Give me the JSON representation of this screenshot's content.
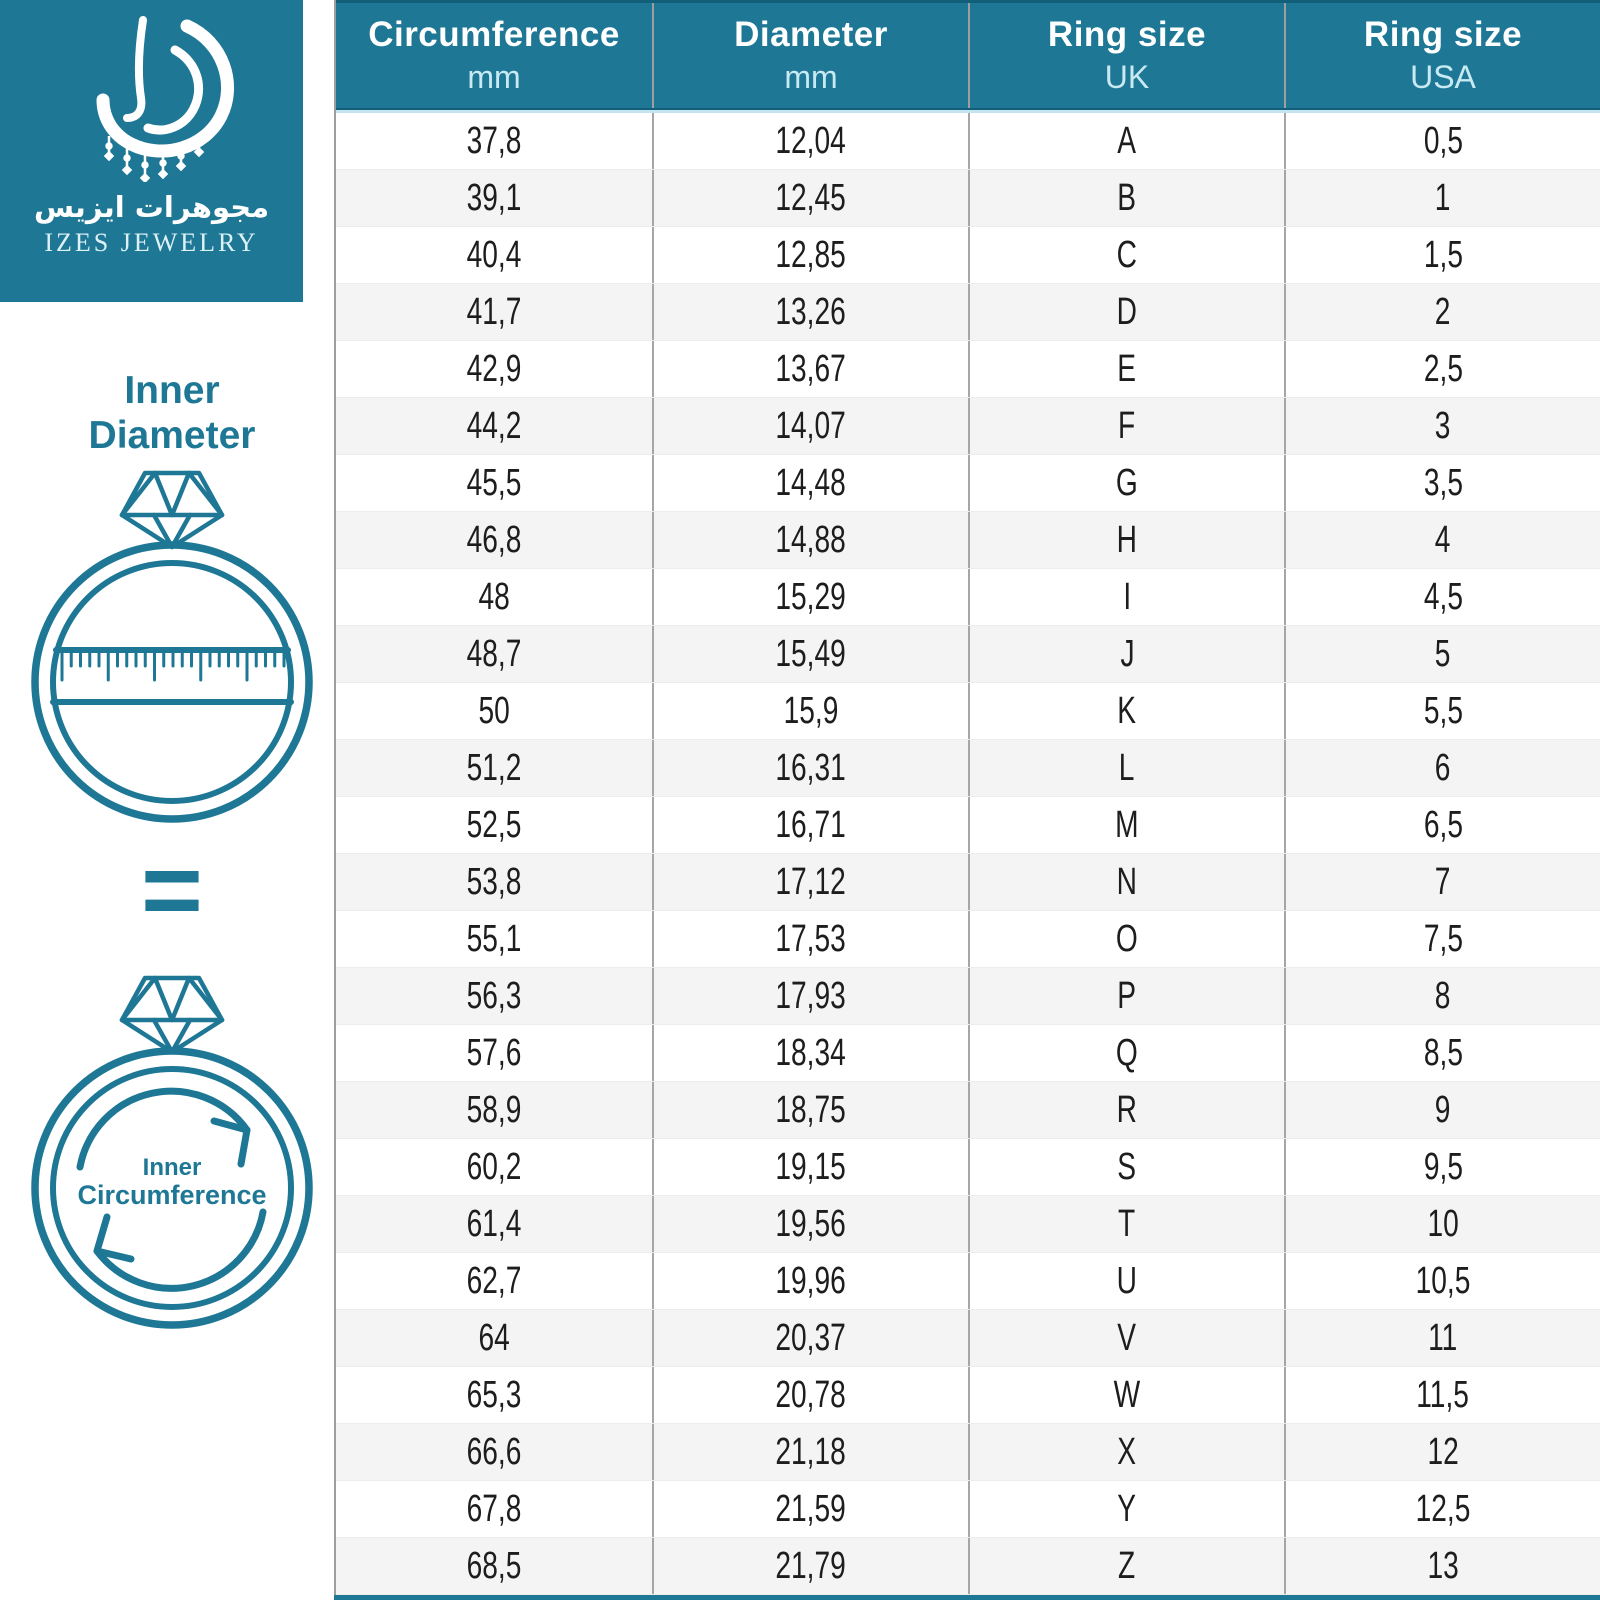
{
  "brand": {
    "arabic_name": "مجوهرات ايزيس",
    "latin_name": "IZES JEWELRY"
  },
  "left_panel": {
    "inner_diameter_label": {
      "line1": "Inner",
      "line2": "Diameter"
    },
    "equals_sign": "=",
    "inner_circumference_label": {
      "line1": "Inner",
      "line2": "Circumference"
    }
  },
  "colors": {
    "teal": "#1d7795",
    "row_stripe": "#f4f4f4",
    "grid_line": "#a6a6a6",
    "header_text": "#ffffff",
    "header_unit_text": "#c9e9f3",
    "cell_text": "#1d1d1d"
  },
  "chart_data": {
    "type": "table",
    "columns": [
      {
        "label": "Circumference",
        "unit": "mm"
      },
      {
        "label": "Diameter",
        "unit": "mm"
      },
      {
        "label": "Ring size",
        "unit": "UK"
      },
      {
        "label": "Ring size",
        "unit": "USA"
      }
    ],
    "rows": [
      [
        "37,8",
        "12,04",
        "A",
        "0,5"
      ],
      [
        "39,1",
        "12,45",
        "B",
        "1"
      ],
      [
        "40,4",
        "12,85",
        "C",
        "1,5"
      ],
      [
        "41,7",
        "13,26",
        "D",
        "2"
      ],
      [
        "42,9",
        "13,67",
        "E",
        "2,5"
      ],
      [
        "44,2",
        "14,07",
        "F",
        "3"
      ],
      [
        "45,5",
        "14,48",
        "G",
        "3,5"
      ],
      [
        "46,8",
        "14,88",
        "H",
        "4"
      ],
      [
        "48",
        "15,29",
        "I",
        "4,5"
      ],
      [
        "48,7",
        "15,49",
        "J",
        "5"
      ],
      [
        "50",
        "15,9",
        "K",
        "5,5"
      ],
      [
        "51,2",
        "16,31",
        "L",
        "6"
      ],
      [
        "52,5",
        "16,71",
        "M",
        "6,5"
      ],
      [
        "53,8",
        "17,12",
        "N",
        "7"
      ],
      [
        "55,1",
        "17,53",
        "O",
        "7,5"
      ],
      [
        "56,3",
        "17,93",
        "P",
        "8"
      ],
      [
        "57,6",
        "18,34",
        "Q",
        "8,5"
      ],
      [
        "58,9",
        "18,75",
        "R",
        "9"
      ],
      [
        "60,2",
        "19,15",
        "S",
        "9,5"
      ],
      [
        "61,4",
        "19,56",
        "T",
        "10"
      ],
      [
        "62,7",
        "19,96",
        "U",
        "10,5"
      ],
      [
        "64",
        "20,37",
        "V",
        "11"
      ],
      [
        "65,3",
        "20,78",
        "W",
        "11,5"
      ],
      [
        "66,6",
        "21,18",
        "X",
        "12"
      ],
      [
        "67,8",
        "21,59",
        "Y",
        "12,5"
      ],
      [
        "68,5",
        "21,79",
        "Z",
        "13"
      ]
    ]
  }
}
